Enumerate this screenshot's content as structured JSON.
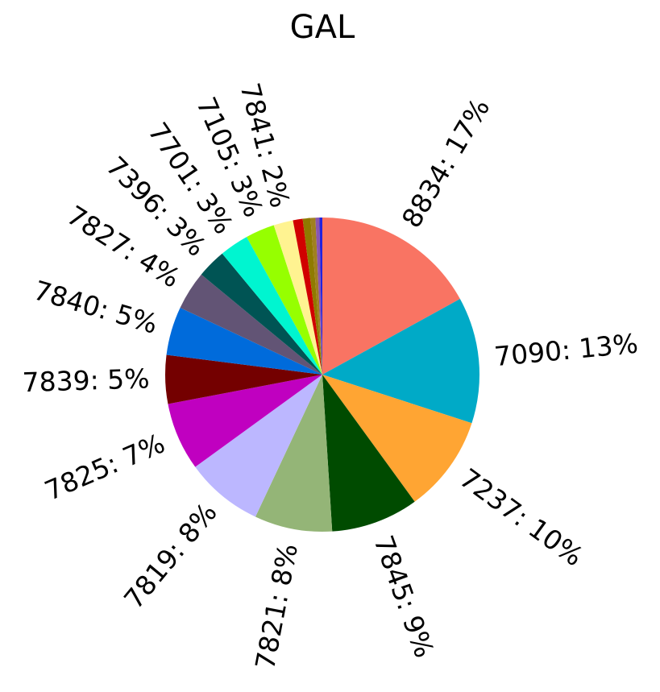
{
  "chart_data": {
    "type": "pie",
    "title": "GAL",
    "categories": [
      "8834: 17%",
      "7090: 13%",
      "7237: 10%",
      "7845: 9%",
      "7821: 8%",
      "7819: 8%",
      "7825: 7%",
      "7839: 5%",
      "7840: 5%",
      "7827: 4%",
      "7396: 3%",
      "7701: 3%",
      "7105: 3%",
      "7841: 2%",
      null,
      null,
      null,
      null,
      null
    ],
    "values": [
      17,
      13,
      10,
      9,
      8,
      8,
      7,
      5,
      5,
      4,
      3,
      3,
      3,
      2,
      1.0,
      0.8,
      0.5,
      0.4,
      0.3
    ],
    "colors": [
      "#f97463",
      "#00aac7",
      "#ffa533",
      "#004b00",
      "#94b577",
      "#bcb7ff",
      "#c000c0",
      "#740000",
      "#006bdb",
      "#625475",
      "#005454",
      "#00f5d0",
      "#96ff00",
      "#fff391",
      "#d10000",
      "#8f7a00",
      "#a08020",
      "#8a56b0",
      "#2222dd"
    ],
    "start_angle": 90,
    "clockwise": true
  }
}
